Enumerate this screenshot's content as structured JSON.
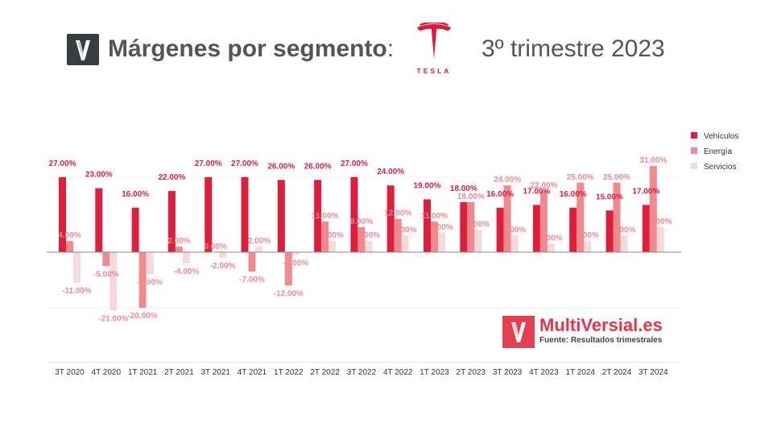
{
  "header": {
    "title_bold": "Márgenes por segmento",
    "title_colon": ":",
    "subtitle": "3º trimestre 2023",
    "tesla_wordmark": "TESLA",
    "logo_icon": "multiversial-m-icon"
  },
  "brand": {
    "name": "MultiVersial.es",
    "source": "Fuente: Resultados trimestrales",
    "logo_icon": "multiversial-m-icon"
  },
  "colors": {
    "vehiculos": "#e01e3c",
    "energia": "#f08a8f",
    "servicios": "#f6d9da",
    "brand_red": "#e8324a"
  },
  "chart_data": {
    "type": "bar",
    "title": "",
    "xlabel": "",
    "ylabel": "",
    "grid": false,
    "legend_position": "right",
    "ylim": [
      -25,
      35
    ],
    "categories": [
      "3T 2020",
      "4T 2020",
      "1T 2021",
      "2T 2021",
      "3T 2021",
      "4T 2021",
      "1T 2022",
      "2T 2022",
      "3T 2022",
      "4T 2022",
      "1T 2023",
      "2T 2023",
      "3T 2023",
      "4T 2023",
      "1T 2024",
      "2T 2024",
      "3T 2024"
    ],
    "series": [
      {
        "name": "Vehículos",
        "values": [
          27,
          23,
          16,
          22,
          27,
          27,
          26,
          26,
          27,
          24,
          19,
          18,
          16,
          17,
          16,
          15,
          17
        ],
        "labels": [
          "27.00%",
          "23.00%",
          "16.00%",
          "22.00%",
          "27.00%",
          "27.00%",
          "26.00%",
          "26.00%",
          "27.00%",
          "24.00%",
          "19.00%",
          "18.00%",
          "16.00%",
          "17.00%",
          "16.00%",
          "15.00%",
          "17.00%"
        ]
      },
      {
        "name": "Energía",
        "values": [
          4,
          -5,
          -20,
          2,
          0,
          -7,
          -12,
          11,
          9,
          12,
          11,
          18,
          24,
          22,
          25,
          25,
          31
        ],
        "labels": [
          "4.00%",
          "-5.00%",
          "-20.00%",
          "2.00%",
          "0.00%",
          "-7.00%",
          "-12.00%",
          "11.00%",
          "9.00%",
          "12.00%",
          "11.00%",
          "18.00%",
          "24.00%",
          "22.00%",
          "25.00%",
          "25.00%",
          "31.00%"
        ]
      },
      {
        "name": "Servicios",
        "values": [
          -11,
          -21,
          -8,
          -4,
          -2,
          2,
          -1,
          4,
          4,
          6,
          7,
          8,
          6,
          3,
          4,
          6,
          9
        ],
        "labels": [
          "-11.00%",
          "-21.00%",
          "-8.00%",
          "-4.00%",
          "-2.00%",
          "2.00%",
          "-1.00%",
          "4.00%",
          "4.00%",
          "6.00%",
          "7.00%",
          "8.00%",
          "6.00%",
          "3.00%",
          "4.00%",
          "6.00%",
          "9.00%"
        ]
      }
    ]
  }
}
